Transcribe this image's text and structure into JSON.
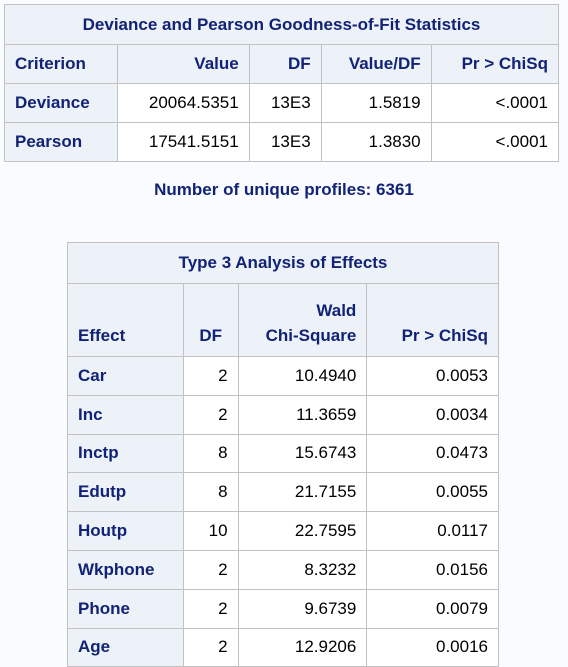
{
  "goodness_of_fit": {
    "title": "Deviance and Pearson Goodness-of-Fit Statistics",
    "headers": [
      "Criterion",
      "Value",
      "DF",
      "Value/DF",
      "Pr > ChiSq"
    ],
    "rows": [
      {
        "criterion": "Deviance",
        "value": "20064.5351",
        "df": "13E3",
        "value_df": "1.5819",
        "p": "<.0001"
      },
      {
        "criterion": "Pearson",
        "value": "17541.5151",
        "df": "13E3",
        "value_df": "1.3830",
        "p": "<.0001"
      }
    ]
  },
  "note": "Number of unique profiles: 6361",
  "type3": {
    "title": "Type 3 Analysis of Effects",
    "headers": {
      "effect": "Effect",
      "df": "DF",
      "chi_line1": "Wald",
      "chi_line2": "Chi-Square",
      "p": "Pr > ChiSq"
    },
    "rows": [
      {
        "effect": "Car",
        "df": "2",
        "chi": "10.4940",
        "p": "0.0053"
      },
      {
        "effect": "Inc",
        "df": "2",
        "chi": "11.3659",
        "p": "0.0034"
      },
      {
        "effect": "Inctp",
        "df": "8",
        "chi": "15.6743",
        "p": "0.0473"
      },
      {
        "effect": "Edutp",
        "df": "8",
        "chi": "21.7155",
        "p": "0.0055"
      },
      {
        "effect": "Houtp",
        "df": "10",
        "chi": "22.7595",
        "p": "0.0117"
      },
      {
        "effect": "Wkphone",
        "df": "2",
        "chi": "8.3232",
        "p": "0.0156"
      },
      {
        "effect": "Phone",
        "df": "2",
        "chi": "9.6739",
        "p": "0.0079"
      },
      {
        "effect": "Age",
        "df": "2",
        "chi": "12.9206",
        "p": "0.0016"
      }
    ]
  }
}
